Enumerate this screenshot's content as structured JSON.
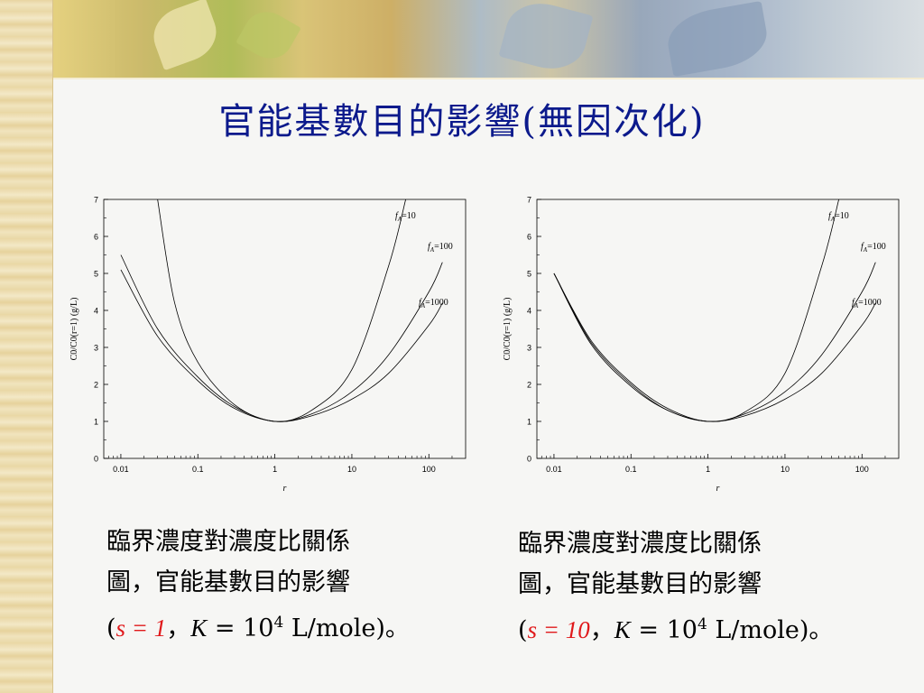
{
  "slide": {
    "title": "官能基數目的影響(無因次化)"
  },
  "charts": [
    {
      "caption_line1": "臨界濃度對濃度比關係",
      "caption_line2": "圖，官能基數目的影響",
      "caption_open": "(",
      "caption_s_value": "s = 1",
      "caption_sep": "，",
      "caption_k": "K",
      "caption_eq": " = 10",
      "caption_exp": "4",
      "caption_tail": " L/mole)。"
    },
    {
      "caption_line1": "臨界濃度對濃度比關係",
      "caption_line2": "圖，官能基數目的影響",
      "caption_open": "(",
      "caption_s_value": "s = 10",
      "caption_sep": "，",
      "caption_k": "K",
      "caption_eq": " = 10",
      "caption_exp": "4",
      "caption_tail": " L/mole)。"
    }
  ],
  "chart_data": [
    {
      "type": "line",
      "xlabel": "r",
      "ylabel": "C0/C0(r=1) (g/L)",
      "x_scale": "log",
      "xlim": [
        0.006,
        300
      ],
      "ylim": [
        0,
        7
      ],
      "x_ticks": [
        "0.01",
        "0.1",
        "1",
        "10",
        "100"
      ],
      "y_ticks": [
        "0",
        "1",
        "2",
        "3",
        "4",
        "5",
        "6",
        "7"
      ],
      "grid": false,
      "series": [
        {
          "name": "fA=10",
          "x": [
            0.03,
            0.05,
            0.1,
            0.3,
            1,
            3,
            10,
            30,
            50
          ],
          "y": [
            7.0,
            4.2,
            2.6,
            1.45,
            1.0,
            1.3,
            2.4,
            5.2,
            7.0
          ]
        },
        {
          "name": "fA=100",
          "x": [
            0.01,
            0.03,
            0.1,
            0.3,
            1,
            3,
            10,
            30,
            100,
            150
          ],
          "y": [
            5.5,
            3.5,
            2.2,
            1.4,
            1.0,
            1.2,
            1.8,
            2.8,
            4.5,
            5.3
          ]
        },
        {
          "name": "fA=1000",
          "x": [
            0.01,
            0.03,
            0.1,
            0.3,
            1,
            3,
            10,
            30,
            100,
            150
          ],
          "y": [
            5.1,
            3.3,
            2.1,
            1.35,
            1.0,
            1.15,
            1.6,
            2.3,
            3.6,
            4.2
          ]
        }
      ],
      "series_labels": [
        {
          "text_f": "f",
          "text_sub": "A",
          "text_val": "=10"
        },
        {
          "text_f": "f",
          "text_sub": "A",
          "text_val": "=100"
        },
        {
          "text_f": "f",
          "text_sub": "A",
          "text_val": "=1000"
        }
      ]
    },
    {
      "type": "line",
      "xlabel": "r",
      "ylabel": "C0/C0(r=1) (g/L)",
      "x_scale": "log",
      "xlim": [
        0.006,
        300
      ],
      "ylim": [
        0,
        7
      ],
      "x_ticks": [
        "0.01",
        "0.1",
        "1",
        "10",
        "100"
      ],
      "y_ticks": [
        "0",
        "1",
        "2",
        "3",
        "4",
        "5",
        "6",
        "7"
      ],
      "grid": false,
      "series": [
        {
          "name": "fA=10",
          "x": [
            0.01,
            0.03,
            0.1,
            0.3,
            1,
            3,
            10,
            30,
            50
          ],
          "y": [
            5.0,
            3.2,
            2.05,
            1.35,
            1.0,
            1.25,
            2.3,
            5.2,
            7.0
          ]
        },
        {
          "name": "fA=100",
          "x": [
            0.01,
            0.03,
            0.1,
            0.3,
            1,
            3,
            10,
            30,
            100,
            150
          ],
          "y": [
            5.0,
            3.15,
            2.0,
            1.3,
            1.0,
            1.2,
            1.8,
            2.8,
            4.5,
            5.3
          ]
        },
        {
          "name": "fA=1000",
          "x": [
            0.01,
            0.03,
            0.1,
            0.3,
            1,
            3,
            10,
            30,
            100,
            150
          ],
          "y": [
            5.0,
            3.1,
            1.95,
            1.3,
            1.0,
            1.15,
            1.6,
            2.3,
            3.6,
            4.2
          ]
        }
      ],
      "series_labels": [
        {
          "text_f": "f",
          "text_sub": "A",
          "text_val": "=10"
        },
        {
          "text_f": "f",
          "text_sub": "A",
          "text_val": "=100"
        },
        {
          "text_f": "f",
          "text_sub": "A",
          "text_val": "=1000"
        }
      ]
    }
  ]
}
